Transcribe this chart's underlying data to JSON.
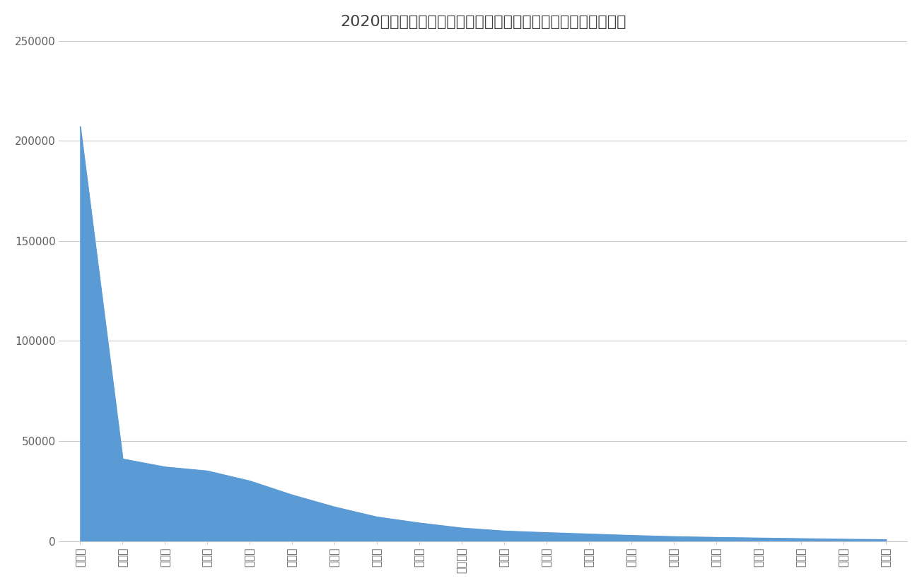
{
  "title": "2020年中国工业锅炉产量前二十省市排名情况产量（蒸发量吨）",
  "categories": [
    "河南省",
    "浙江省",
    "四川省",
    "山东省",
    "江苏省",
    "安徽省",
    "湖南省",
    "福建省",
    "辽宁省",
    "黑龙江省",
    "吉林省",
    "河北省",
    "山西省",
    "陕西省",
    "广东省",
    "江西省",
    "广西省",
    "上海市",
    "湖北省",
    "天津市"
  ],
  "values": [
    207000,
    41000,
    37000,
    35000,
    30000,
    23000,
    17000,
    12000,
    9000,
    6500,
    5000,
    4200,
    3500,
    2800,
    2200,
    1800,
    1500,
    1200,
    900,
    700
  ],
  "fill_color": "#5b9bd5",
  "line_color": "#5b9bd5",
  "background_color": "#ffffff",
  "grid_color": "#c8c8c8",
  "title_color": "#404040",
  "tick_color": "#606060",
  "ylim": [
    0,
    250000
  ],
  "yticks": [
    0,
    50000,
    100000,
    150000,
    200000,
    250000
  ],
  "title_fontsize": 16,
  "tick_fontsize": 11
}
